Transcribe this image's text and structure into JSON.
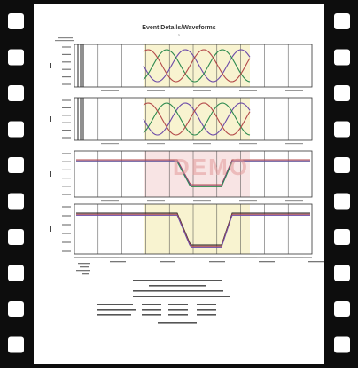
{
  "report": {
    "title": "Event Details/Waveforms",
    "title_sub": "1",
    "watermark": "DEMO"
  },
  "colors": {
    "film": "#0d0d0d",
    "hole": "#ffffff",
    "page": "#ffffff",
    "highlight_yellow": "#f6f0c4",
    "highlight_pink": "#f6dddd",
    "watermark": "#e39a9a",
    "wave_a": "#6b4aa8",
    "wave_b": "#2e8a4f",
    "wave_c": "#b34a4a",
    "trace_black": "#222222"
  },
  "icons": {
    "film_hole": "film-sprocket-hole-icon"
  }
}
